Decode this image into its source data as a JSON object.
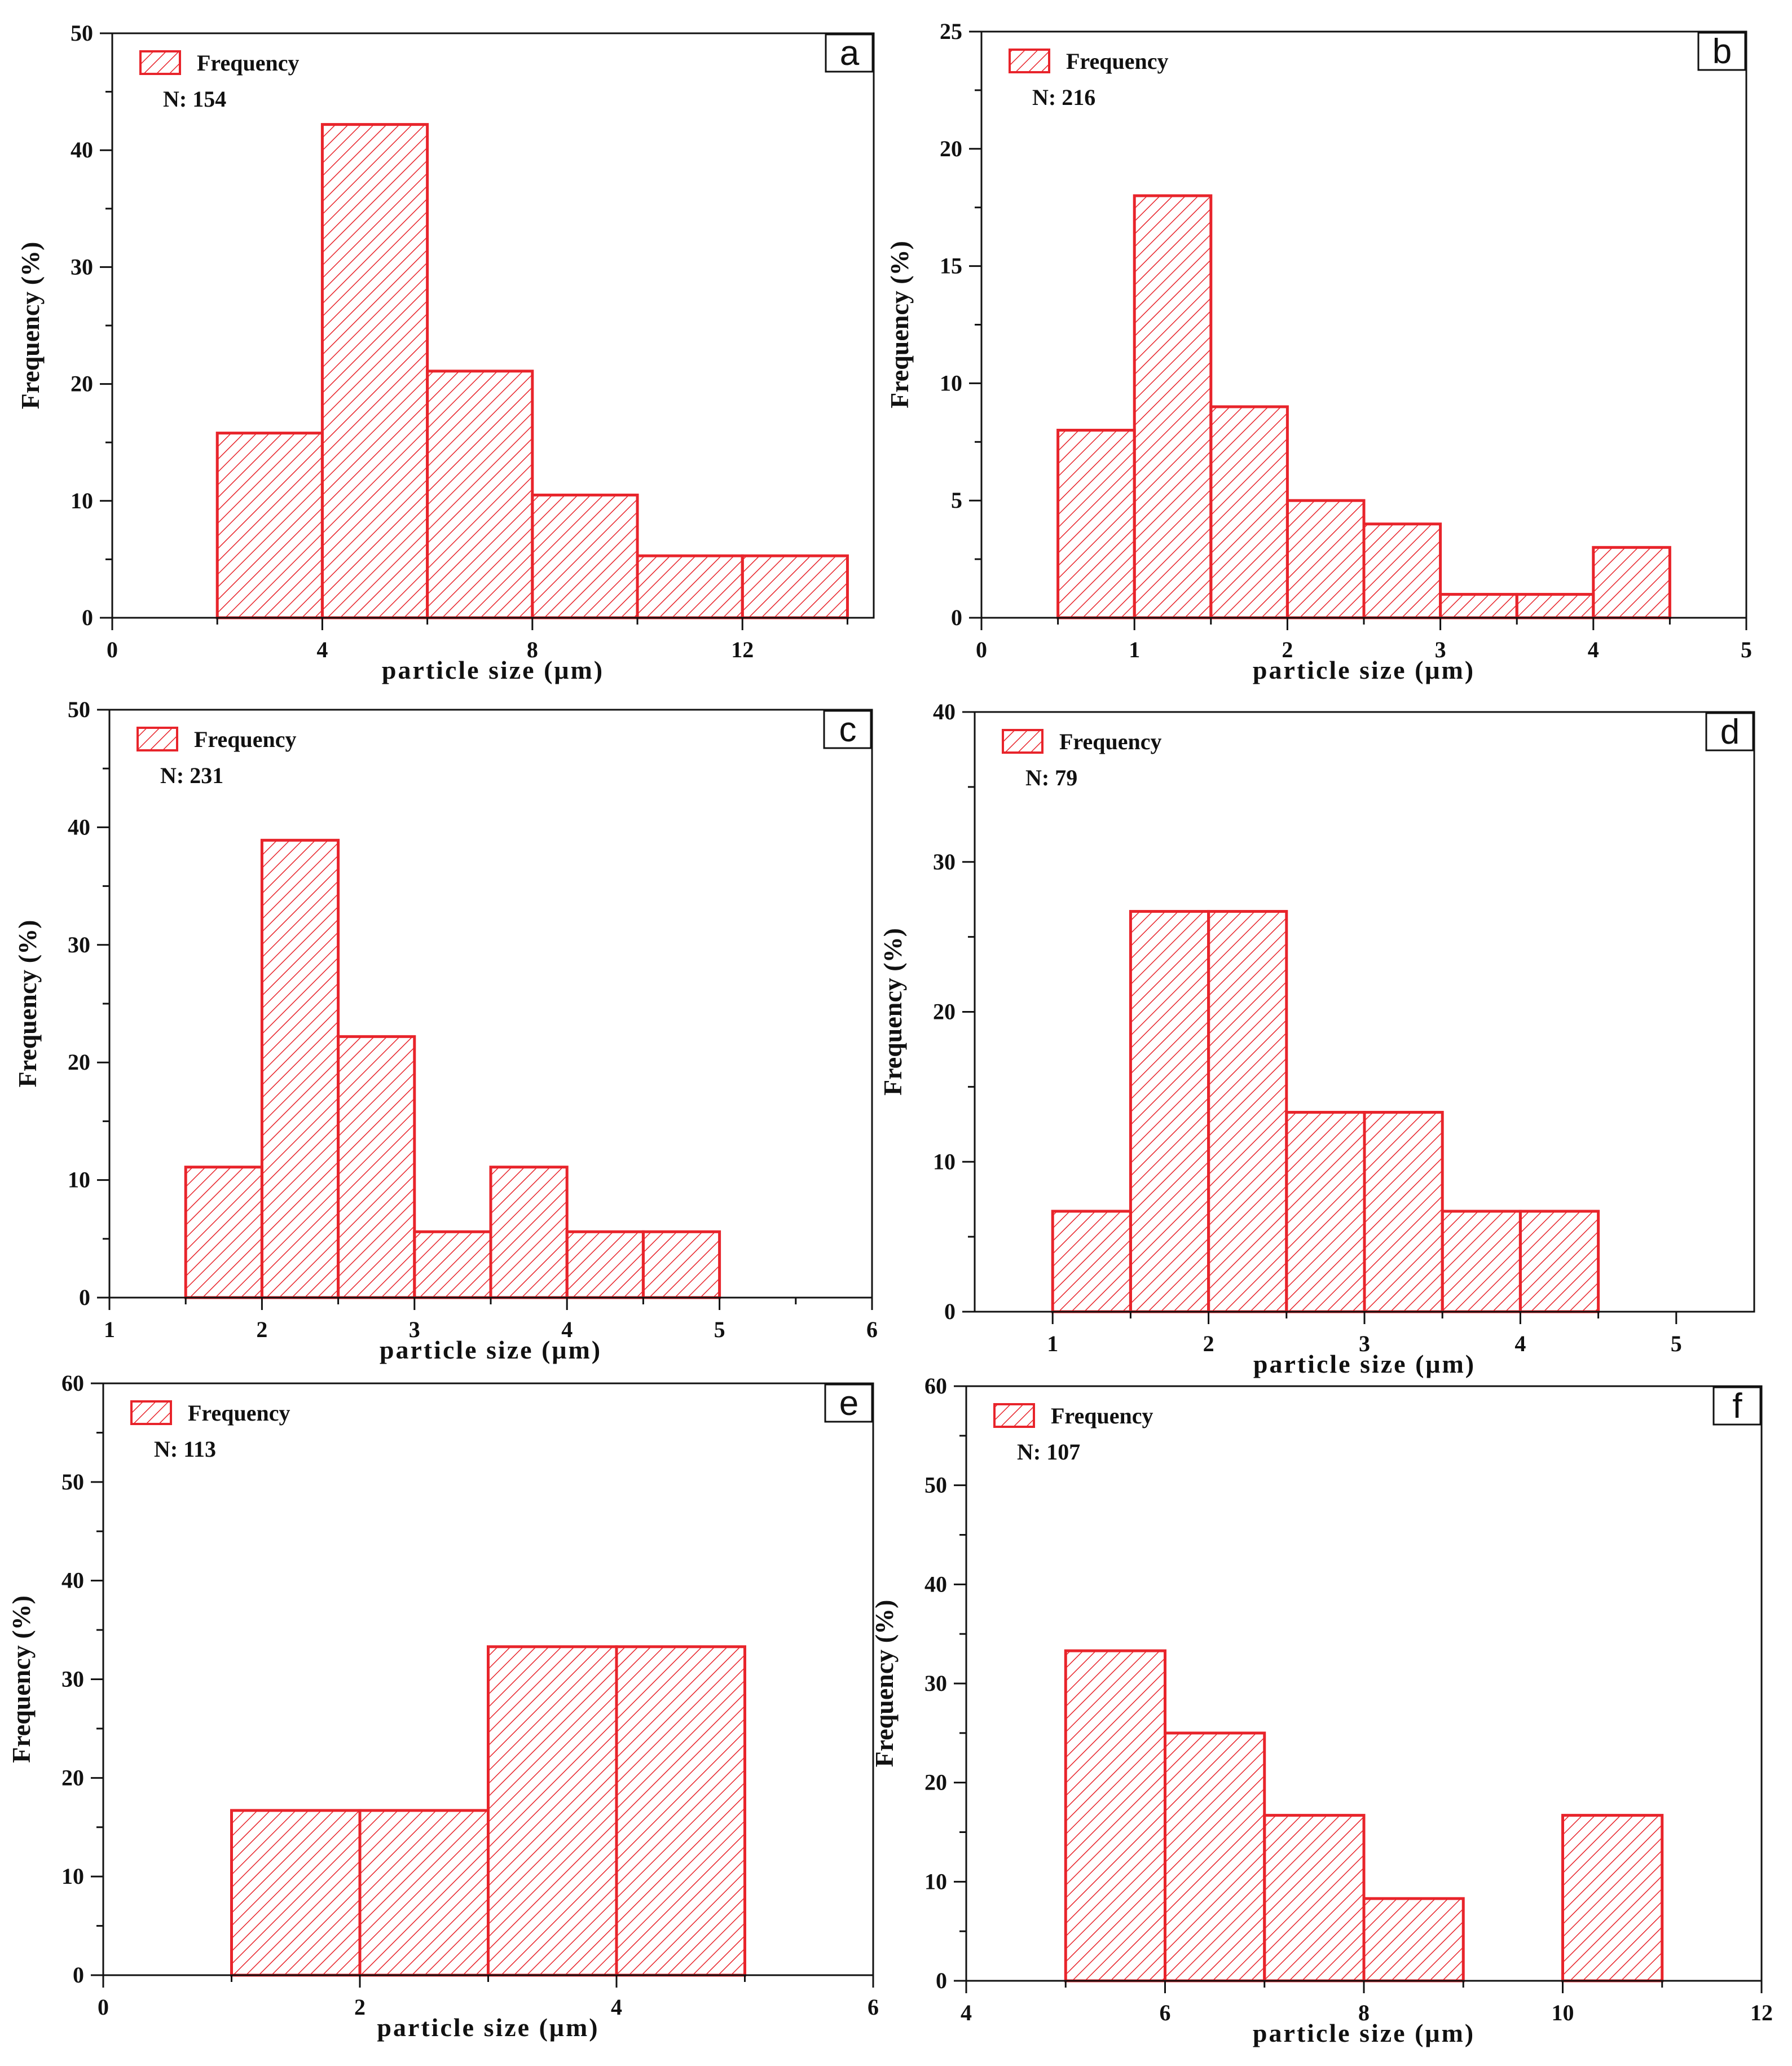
{
  "figure": {
    "bar_color": "#e8242b",
    "axis_color": "#111111",
    "legend_label": "Frequency"
  },
  "chart_data": [
    {
      "type": "bar",
      "panel": "a",
      "title": "",
      "xlabel": "particle size (μm)",
      "ylabel": "Frequency (%)",
      "xlim": [
        0,
        14.5
      ],
      "ylim": [
        0,
        50
      ],
      "xticks": [
        0,
        4,
        8,
        12
      ],
      "yticks": [
        0,
        10,
        20,
        30,
        40,
        50
      ],
      "legend": "Frequency",
      "n_label": "N: 154",
      "bins": [
        [
          2,
          4
        ],
        [
          4,
          6
        ],
        [
          6,
          8
        ],
        [
          8,
          10
        ],
        [
          10,
          12
        ],
        [
          12,
          14
        ]
      ],
      "values": [
        15.8,
        42.2,
        21.1,
        10.5,
        5.3,
        5.3
      ]
    },
    {
      "type": "bar",
      "panel": "b",
      "title": "",
      "xlabel": "particle size (μm)",
      "ylabel": "Frequency (%)",
      "xlim": [
        0,
        5
      ],
      "ylim": [
        0,
        25
      ],
      "xticks": [
        0,
        1,
        2,
        3,
        4,
        5
      ],
      "yticks": [
        0,
        5,
        10,
        15,
        20,
        25
      ],
      "legend": "Frequency",
      "n_label": "N: 216",
      "bins": [
        [
          0.5,
          1
        ],
        [
          1,
          1.5
        ],
        [
          1.5,
          2
        ],
        [
          2,
          2.5
        ],
        [
          2.5,
          3
        ],
        [
          3,
          3.5
        ],
        [
          3.5,
          4
        ],
        [
          4,
          4.5
        ]
      ],
      "values": [
        8,
        18,
        9,
        5,
        4,
        1,
        1,
        3
      ]
    },
    {
      "type": "bar",
      "panel": "c",
      "title": "",
      "xlabel": "particle size (μm)",
      "ylabel": "Frequency (%)",
      "xlim": [
        1,
        6
      ],
      "ylim": [
        0,
        50
      ],
      "xticks": [
        1,
        2,
        3,
        4,
        5,
        6
      ],
      "yticks": [
        0,
        10,
        20,
        30,
        40,
        50
      ],
      "legend": "Frequency",
      "n_label": "N: 231",
      "bins": [
        [
          1.5,
          2
        ],
        [
          2,
          2.5
        ],
        [
          2.5,
          3
        ],
        [
          3,
          3.5
        ],
        [
          3.5,
          4
        ],
        [
          4,
          4.5
        ],
        [
          4.5,
          5
        ]
      ],
      "values": [
        11.1,
        38.9,
        22.2,
        5.6,
        11.1,
        5.6,
        5.6
      ]
    },
    {
      "type": "bar",
      "panel": "d",
      "title": "",
      "xlabel": "particle size (μm)",
      "ylabel": "Frequency (%)",
      "xlim": [
        0.5,
        5.5
      ],
      "ylim": [
        0,
        40
      ],
      "xticks": [
        1,
        2,
        3,
        4,
        5
      ],
      "yticks": [
        0,
        10,
        20,
        30,
        40
      ],
      "legend": "Frequency",
      "n_label": "N: 79",
      "bins": [
        [
          1,
          1.5
        ],
        [
          1.5,
          2
        ],
        [
          2,
          2.5
        ],
        [
          2.5,
          3
        ],
        [
          3,
          3.5
        ],
        [
          3.5,
          4
        ],
        [
          4,
          4.5
        ]
      ],
      "values": [
        6.7,
        26.7,
        26.7,
        13.3,
        13.3,
        6.7,
        6.7
      ]
    },
    {
      "type": "bar",
      "panel": "e",
      "title": "",
      "xlabel": "particle size (μm)",
      "ylabel": "Frequency (%)",
      "xlim": [
        0,
        6
      ],
      "ylim": [
        0,
        60
      ],
      "xticks": [
        0,
        2,
        4,
        6
      ],
      "yticks": [
        0,
        10,
        20,
        30,
        40,
        50,
        60
      ],
      "legend": "Frequency",
      "n_label": "N: 113",
      "bins": [
        [
          1,
          2
        ],
        [
          2,
          3
        ],
        [
          3,
          4
        ],
        [
          4,
          5
        ]
      ],
      "values": [
        16.7,
        16.7,
        33.3,
        33.3
      ]
    },
    {
      "type": "bar",
      "panel": "f",
      "title": "",
      "xlabel": "particle size (μm)",
      "ylabel": "Frequency (%)",
      "xlim": [
        4,
        12
      ],
      "ylim": [
        0,
        60
      ],
      "xticks": [
        4,
        6,
        8,
        10,
        12
      ],
      "yticks": [
        0,
        10,
        20,
        30,
        40,
        50,
        60
      ],
      "legend": "Frequency",
      "n_label": "N: 107",
      "bins": [
        [
          5,
          6
        ],
        [
          6,
          7
        ],
        [
          7,
          8
        ],
        [
          8,
          9
        ],
        [
          10,
          11
        ]
      ],
      "values": [
        33.3,
        25.0,
        16.7,
        8.3,
        16.7
      ]
    }
  ]
}
